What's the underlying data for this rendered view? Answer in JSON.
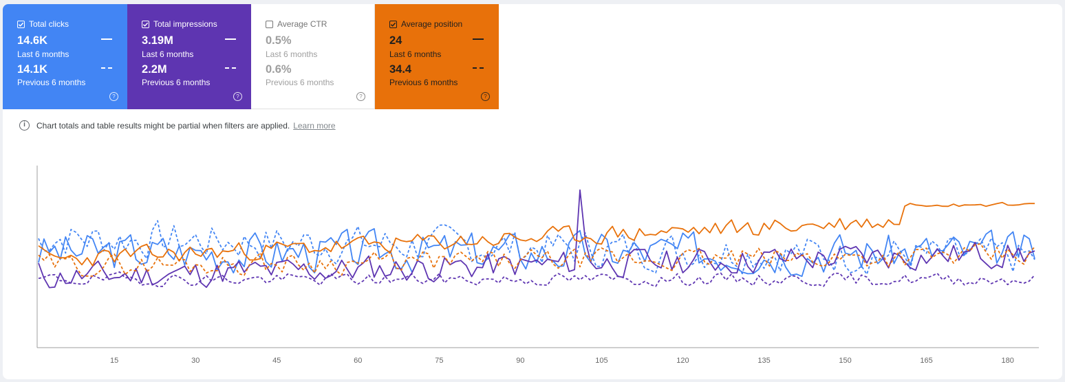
{
  "cards": [
    {
      "key": "clicks",
      "label": "Total clicks",
      "checked": true,
      "current_value": "14.6K",
      "current_period": "Last 6 months",
      "previous_value": "14.1K",
      "previous_period": "Previous 6 months",
      "color": "#4285f4"
    },
    {
      "key": "impressions",
      "label": "Total impressions",
      "checked": true,
      "current_value": "3.19M",
      "current_period": "Last 6 months",
      "previous_value": "2.2M",
      "previous_period": "Previous 6 months",
      "color": "#5e35b1"
    },
    {
      "key": "ctr",
      "label": "Average CTR",
      "checked": false,
      "current_value": "0.5%",
      "current_period": "Last 6 months",
      "previous_value": "0.6%",
      "previous_period": "Previous 6 months",
      "color": "#00897b"
    },
    {
      "key": "position",
      "label": "Average position",
      "checked": true,
      "current_value": "24",
      "current_period": "Last 6 months",
      "previous_value": "34.4",
      "previous_period": "Previous 6 months",
      "color": "#e8710a"
    }
  ],
  "notice": {
    "text": "Chart totals and table results might be partial when filters are applied.",
    "link": "Learn more"
  },
  "help_icon": "?",
  "info_icon": "i",
  "chart_data": {
    "type": "line",
    "x_ticks": [
      "15",
      "30",
      "45",
      "60",
      "75",
      "90",
      "105",
      "120",
      "135",
      "150",
      "165",
      "180"
    ],
    "xlim": [
      1,
      185
    ],
    "y_axis_labels": "none",
    "grid": false,
    "series": [
      {
        "metric": "clicks",
        "period": "current",
        "style": "solid",
        "color": "#4285f4",
        "mean": 0.52,
        "amp": 0.13,
        "seed": 3,
        "trend": 0.0
      },
      {
        "metric": "clicks",
        "period": "previous",
        "style": "dashed",
        "color": "#4285f4",
        "mean": 0.55,
        "amp": 0.12,
        "seed": 7,
        "trend": -0.1
      },
      {
        "metric": "impressions",
        "period": "current",
        "style": "solid",
        "color": "#5e35b1",
        "mean": 0.43,
        "amp": 0.09,
        "seed": 11,
        "trend": 0.12
      },
      {
        "metric": "impressions",
        "period": "previous",
        "style": "dashed",
        "color": "#5e35b1",
        "mean": 0.33,
        "amp": 0.04,
        "seed": 19,
        "trend": 0.0
      },
      {
        "metric": "position",
        "period": "current",
        "style": "solid",
        "color": "#e8710a",
        "mean": 0.62,
        "amp": 0.06,
        "seed": 23,
        "trend": 0.22
      },
      {
        "metric": "position",
        "period": "previous",
        "style": "dashed",
        "color": "#e8710a",
        "mean": 0.46,
        "amp": 0.07,
        "seed": 29,
        "trend": 0.05
      }
    ]
  }
}
